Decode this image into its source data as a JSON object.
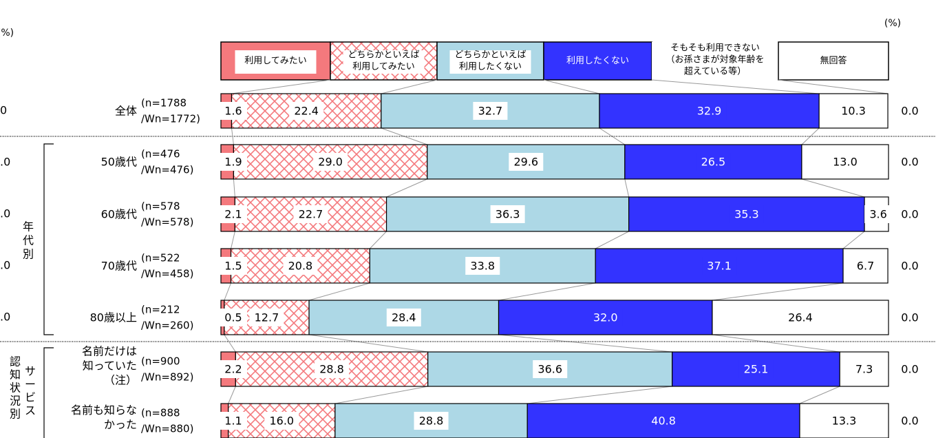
{
  "colors": {
    "like": "#f4797d",
    "somewhat_like": "#f4797d",
    "somewhat_not": "#add8e6",
    "not_like": "#3333ff",
    "cannot_use": "#ffffff",
    "no_answer": "#d9d9d9"
  },
  "chart_data": {
    "type": "bar",
    "orientation": "horizontal",
    "stacked": true,
    "xlim": [
      0,
      100
    ],
    "unit_right": "(%)",
    "unit_left": "(%)",
    "legend_placement": "top",
    "legend": [
      "利用してみたい",
      "どちらかといえば\n利用してみたい",
      "どちらかといえば\n利用したくない",
      "利用したくない",
      "そもそも利用できない\n（お孫さまが対象年齢を\n超えている等）",
      "無回答"
    ],
    "groups": [
      {
        "label": "年代別",
        "rows": [
          1,
          2,
          3,
          4
        ]
      },
      {
        "label": "サービス認知状況別",
        "rows": [
          5,
          6
        ]
      }
    ],
    "rows": [
      {
        "label": "全体",
        "n": "(n=1788",
        "wn": "/Wn=1772)",
        "values": [
          1.6,
          22.4,
          32.7,
          32.9,
          10.3,
          0.0
        ]
      },
      {
        "label": "50歳代",
        "n": "(n=476",
        "wn": "/Wn=476)",
        "values": [
          1.9,
          29.0,
          29.6,
          26.5,
          13.0,
          0.0
        ]
      },
      {
        "label": "60歳代",
        "n": "(n=578",
        "wn": "/Wn=578)",
        "values": [
          2.1,
          22.7,
          36.3,
          35.3,
          3.6,
          0.0
        ]
      },
      {
        "label": "70歳代",
        "n": "(n=522",
        "wn": "/Wn=458)",
        "values": [
          1.5,
          20.8,
          33.8,
          37.1,
          6.7,
          0.0
        ]
      },
      {
        "label": "80歳以上",
        "n": "(n=212",
        "wn": "/Wn=260)",
        "values": [
          0.5,
          12.7,
          28.4,
          32.0,
          26.4,
          0.0
        ]
      },
      {
        "label": "名前だけは\n知っていた\n（注）",
        "n": "(n=900",
        "wn": "/Wn=892)",
        "values": [
          2.2,
          28.8,
          36.6,
          25.1,
          7.3,
          0.0
        ]
      },
      {
        "label": "名前も知らな\nかった",
        "n": "(n=888",
        "wn": "/Wn=880)",
        "values": [
          1.1,
          16.0,
          28.8,
          40.8,
          13.3,
          0.0
        ]
      }
    ],
    "left_values": [
      "0",
      ".0",
      ".0",
      ".0",
      ".0"
    ]
  }
}
